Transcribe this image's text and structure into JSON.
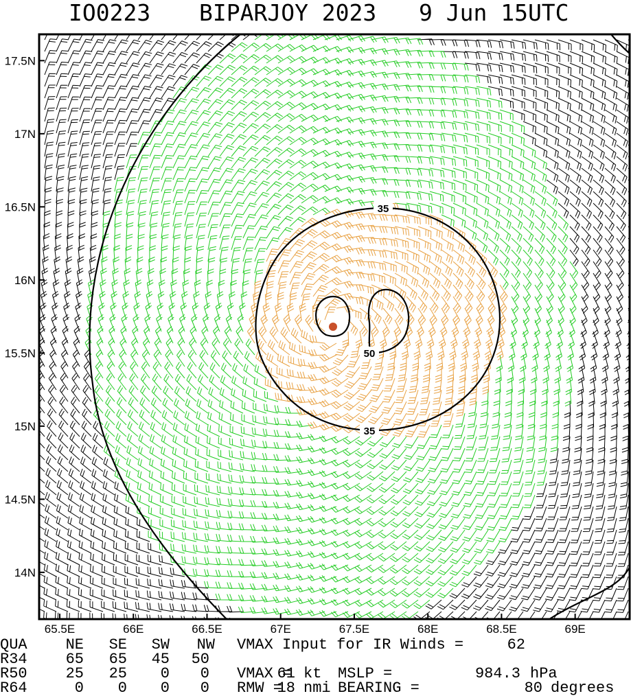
{
  "header": {
    "storm_id": "IO0223",
    "storm_name": "BIPARJOY 2023",
    "time": "9 Jun 15UTC"
  },
  "map": {
    "xlim": [
      65.36,
      69.37
    ],
    "ylim": [
      13.68,
      17.68
    ],
    "xticks": [
      {
        "value": 65.5,
        "label": "65.5E"
      },
      {
        "value": 66,
        "label": "66E"
      },
      {
        "value": 66.5,
        "label": "66.5E"
      },
      {
        "value": 67,
        "label": "67E"
      },
      {
        "value": 67.5,
        "label": "67.5E"
      },
      {
        "value": 68,
        "label": "68E"
      },
      {
        "value": 68.5,
        "label": "68.5E"
      },
      {
        "value": 69,
        "label": "69E"
      }
    ],
    "yticks": [
      {
        "value": 14,
        "label": "14N"
      },
      {
        "value": 14.5,
        "label": "14.5N"
      },
      {
        "value": 15,
        "label": "15N"
      },
      {
        "value": 15.5,
        "label": "15.5N"
      },
      {
        "value": 16,
        "label": "16N"
      },
      {
        "value": 16.5,
        "label": "16.5N"
      },
      {
        "value": 17,
        "label": "17N"
      },
      {
        "value": 17.5,
        "label": "17.5N"
      }
    ],
    "contour_labels": [
      35,
      35,
      50
    ]
  },
  "table": {
    "header": [
      "QUA",
      "NE",
      "SE",
      "SW",
      "NW"
    ],
    "rows": [
      [
        "R34",
        65,
        65,
        45,
        50
      ],
      [
        "R50",
        25,
        25,
        0,
        0
      ],
      [
        "R64",
        0,
        0,
        0,
        0
      ]
    ]
  },
  "info": {
    "ir_vmax": {
      "label": "VMAX Input for IR Winds =",
      "value": 62
    },
    "vmax": {
      "label": "VMAX =",
      "value": 61,
      "unit": "kt"
    },
    "mslp": {
      "label": "MSLP =",
      "value": 984.3,
      "unit": "hPa"
    },
    "rmw": {
      "label": "RMW =",
      "value": 18,
      "unit": "nmi"
    },
    "bearing": {
      "label": "BEARING =",
      "value": 80,
      "unit": "degrees"
    }
  }
}
